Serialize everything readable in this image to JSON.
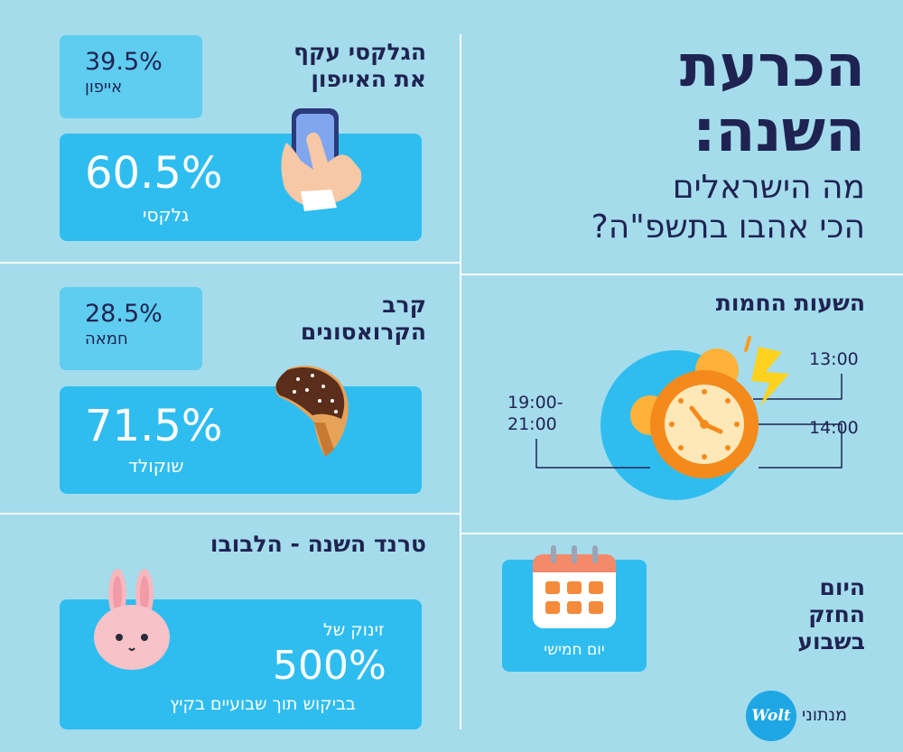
{
  "header": {
    "title_line1": "הכרעת",
    "title_line2": "השנה:",
    "subtitle_line1": "מה הישראלים",
    "subtitle_line2": "הכי אהבו בתשפ\"ה?"
  },
  "phones": {
    "title_line1": "הגלקסי עקף",
    "title_line2": "את האייפון",
    "iphone_pct": "39.5%",
    "iphone_label": "אייפון",
    "galaxy_pct": "60.5%",
    "galaxy_label": "גלקסי"
  },
  "croissant": {
    "title_line1": "קרב",
    "title_line2": "הקרואסונים",
    "butter_pct": "28.5%",
    "butter_label": "חמאה",
    "choc_pct": "71.5%",
    "choc_label": "שוקולד"
  },
  "trend": {
    "title": "טרנד השנה - הלבובו",
    "jump_label": "זינוק של",
    "pct": "500%",
    "desc": "בביקוש תוך שבועיים בקיץ"
  },
  "hours": {
    "title": "השעות החמות",
    "time1": "13:00",
    "time2": "14:00",
    "time3_line1": "19:00-",
    "time3_line2": "21:00"
  },
  "day": {
    "title_line1": "היום",
    "title_line2": "החזק",
    "title_line3": "בשבוע",
    "value": "יום חמישי"
  },
  "footer": {
    "brand": "Wolt",
    "credit": "מנתוני"
  },
  "colors": {
    "background": "#a4dcec",
    "navy": "#1f2352",
    "box_light": "#5ecdef",
    "box_bright": "#2fbdf0"
  }
}
